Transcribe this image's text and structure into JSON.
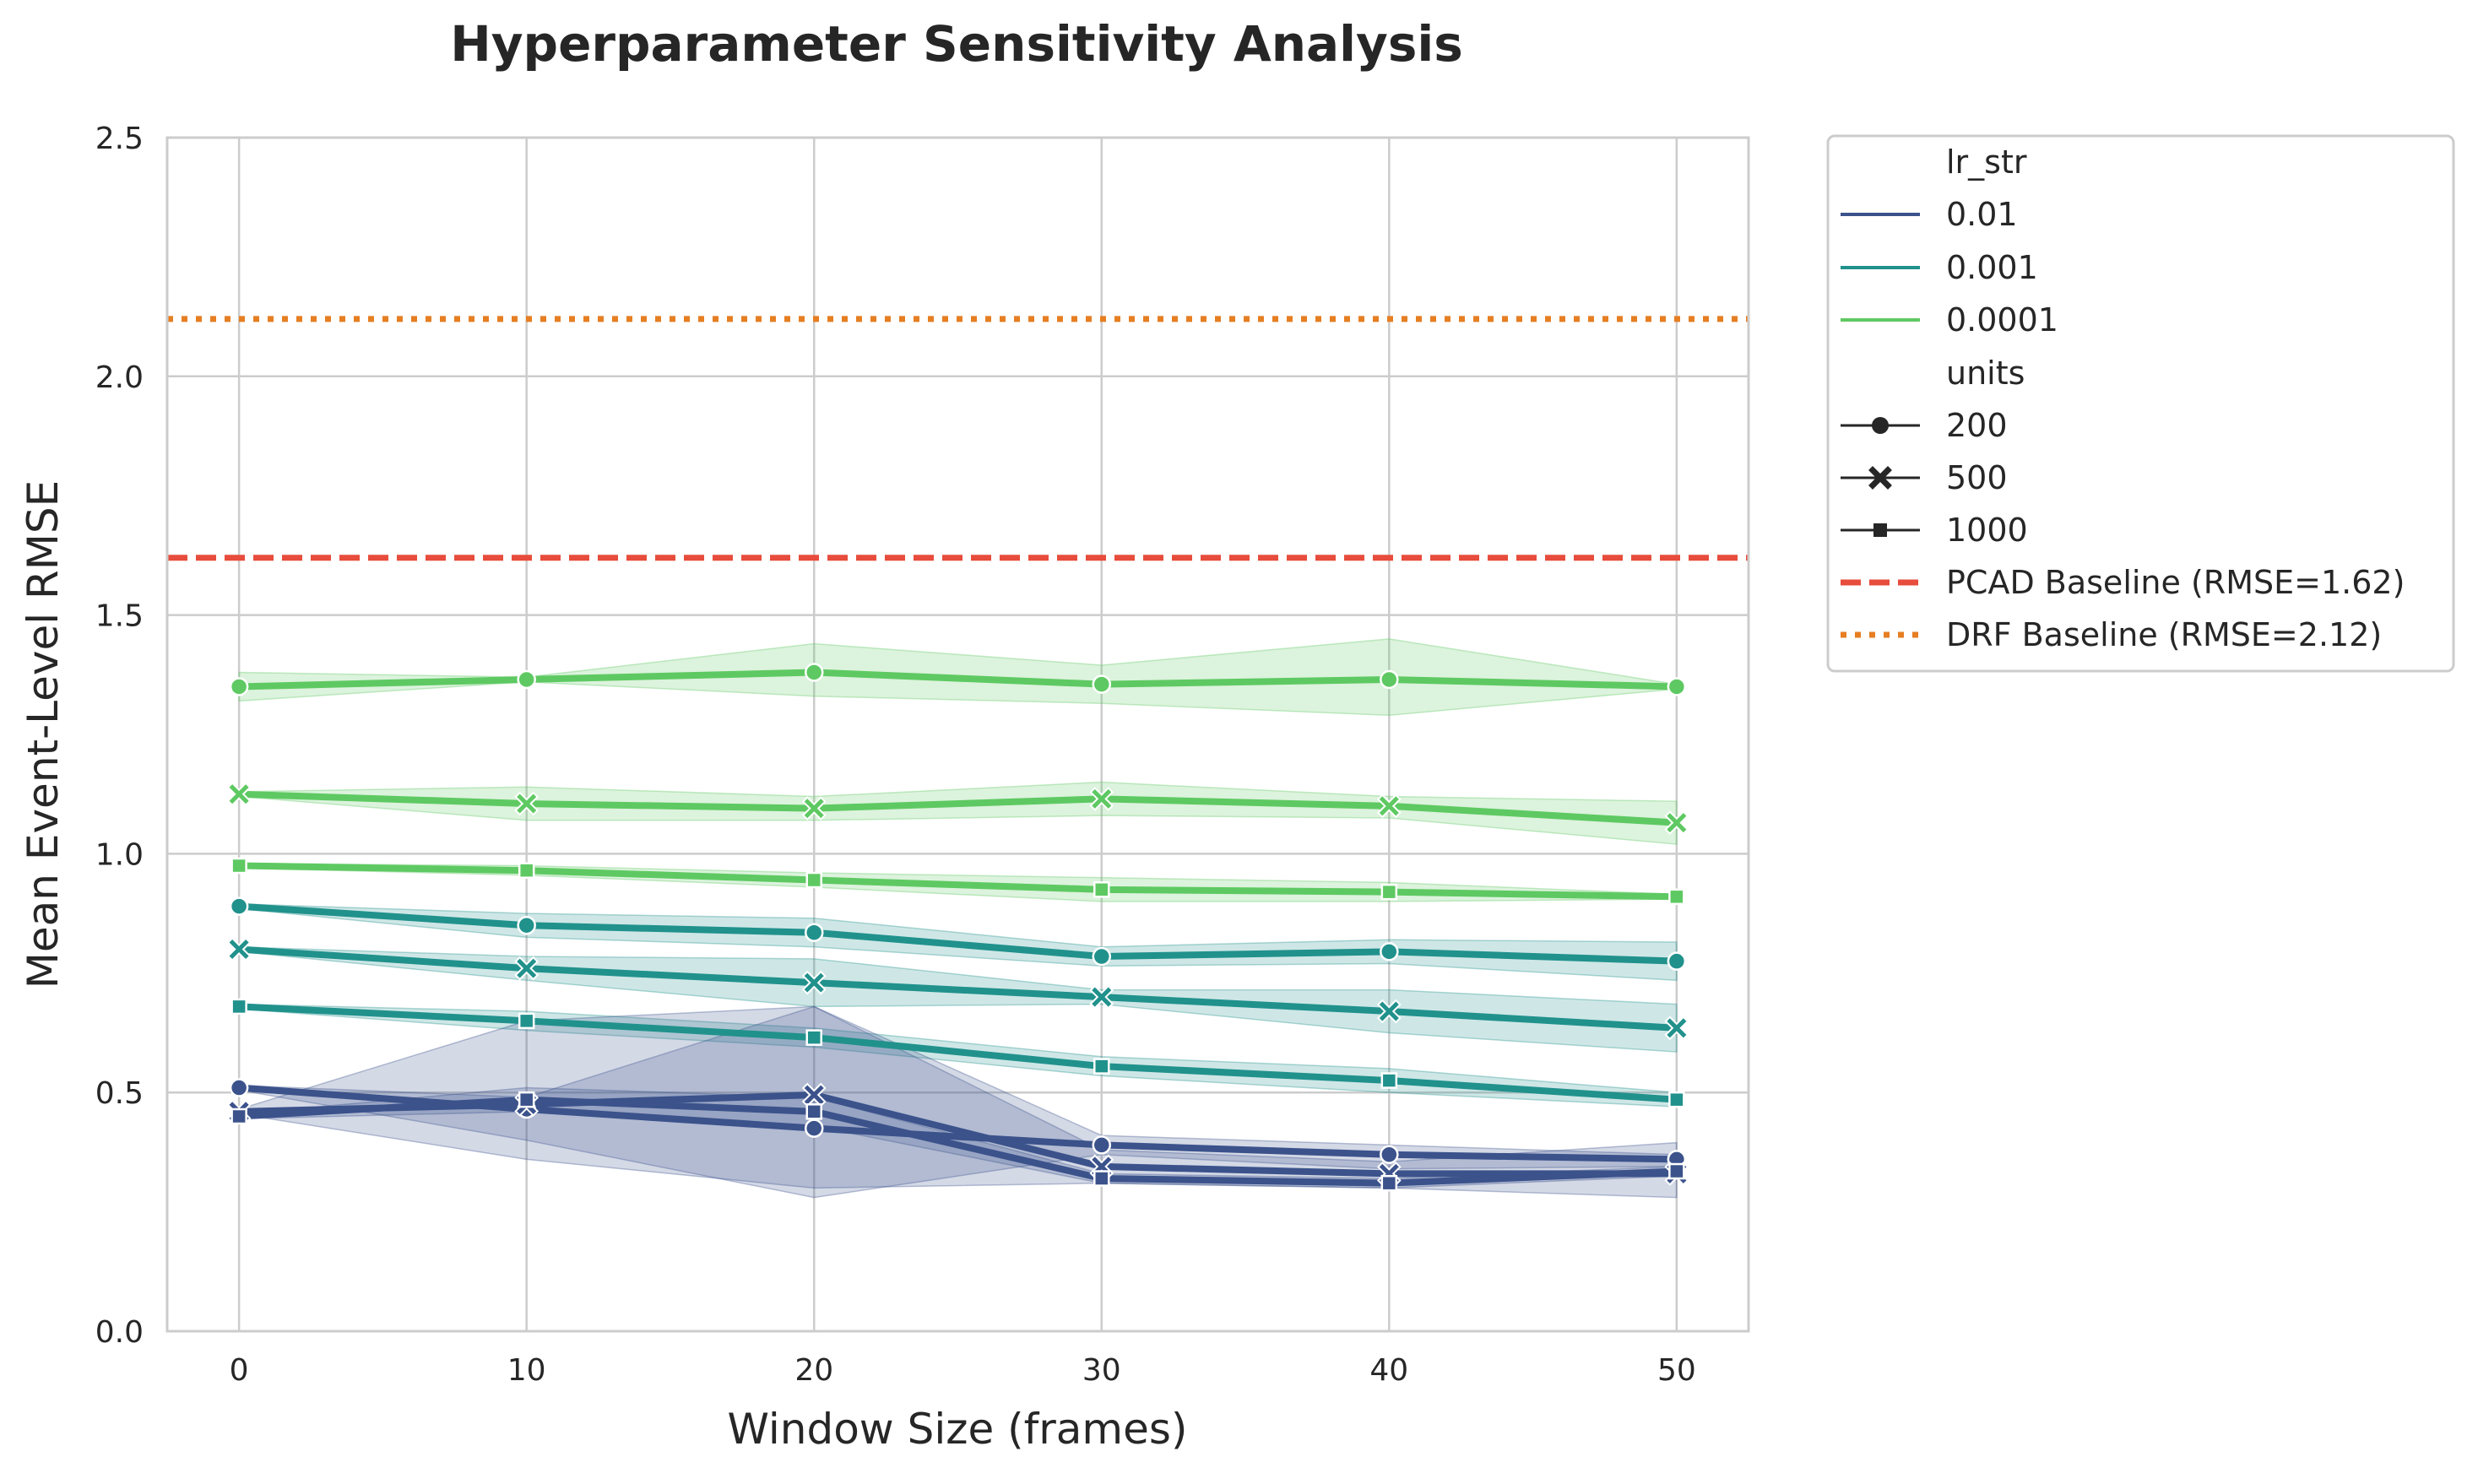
{
  "chart_data": {
    "type": "line",
    "title": "Hyperparameter Sensitivity Analysis",
    "xlabel": "Window Size (frames)",
    "ylabel": "Mean Event-Level RMSE",
    "xlim": [
      -2.5,
      52.5
    ],
    "ylim": [
      0.0,
      2.5
    ],
    "x": [
      0,
      10,
      20,
      30,
      40,
      50
    ],
    "x_ticks": [
      "0",
      "10",
      "20",
      "30",
      "40",
      "50"
    ],
    "y_ticks": [
      "0.0",
      "0.5",
      "1.0",
      "1.5",
      "2.0",
      "2.5"
    ],
    "grid": true,
    "legend_position": "outside-top-right",
    "legend": {
      "hue_title": "lr_str",
      "hue_entries": [
        {
          "label": "0.01",
          "color": "#3b528b"
        },
        {
          "label": "0.001",
          "color": "#21918c"
        },
        {
          "label": "0.0001",
          "color": "#5ec962"
        }
      ],
      "style_title": "units",
      "style_entries": [
        {
          "label": "200",
          "marker": "circle"
        },
        {
          "label": "500",
          "marker": "x"
        },
        {
          "label": "1000",
          "marker": "square"
        }
      ],
      "baseline_entries": [
        {
          "label": "PCAD Baseline (RMSE=1.62)",
          "color": "#e74c3c",
          "dash": "dashed"
        },
        {
          "label": "DRF Baseline (RMSE=2.12)",
          "color": "#e67e22",
          "dash": "dotted"
        }
      ]
    },
    "baselines": [
      {
        "name": "PCAD Baseline",
        "value": 1.62,
        "color": "#e74c3c",
        "dash": "dashed"
      },
      {
        "name": "DRF Baseline",
        "value": 2.12,
        "color": "#e67e22",
        "dash": "dotted"
      }
    ],
    "series": [
      {
        "lr": "0.0001",
        "units": "200",
        "color": "#5ec962",
        "marker": "circle",
        "values": [
          1.35,
          1.365,
          1.38,
          1.355,
          1.365,
          1.35
        ],
        "lower": [
          1.32,
          1.36,
          1.33,
          1.315,
          1.29,
          1.345
        ],
        "upper": [
          1.38,
          1.37,
          1.44,
          1.395,
          1.45,
          1.355
        ]
      },
      {
        "lr": "0.0001",
        "units": "500",
        "color": "#5ec962",
        "marker": "x",
        "values": [
          1.125,
          1.105,
          1.095,
          1.115,
          1.1,
          1.065
        ],
        "lower": [
          1.12,
          1.07,
          1.07,
          1.08,
          1.075,
          1.02
        ],
        "upper": [
          1.13,
          1.14,
          1.12,
          1.15,
          1.12,
          1.11
        ]
      },
      {
        "lr": "0.0001",
        "units": "1000",
        "color": "#5ec962",
        "marker": "square",
        "values": [
          0.975,
          0.965,
          0.945,
          0.925,
          0.92,
          0.91
        ],
        "lower": [
          0.97,
          0.955,
          0.93,
          0.9,
          0.9,
          0.905
        ],
        "upper": [
          0.98,
          0.975,
          0.96,
          0.95,
          0.94,
          0.915
        ]
      },
      {
        "lr": "0.001",
        "units": "200",
        "color": "#21918c",
        "marker": "circle",
        "values": [
          0.89,
          0.85,
          0.835,
          0.785,
          0.795,
          0.775
        ],
        "lower": [
          0.885,
          0.825,
          0.805,
          0.765,
          0.77,
          0.735
        ],
        "upper": [
          0.895,
          0.875,
          0.865,
          0.805,
          0.82,
          0.815
        ]
      },
      {
        "lr": "0.001",
        "units": "500",
        "color": "#21918c",
        "marker": "x",
        "values": [
          0.8,
          0.76,
          0.73,
          0.7,
          0.67,
          0.635
        ],
        "lower": [
          0.795,
          0.735,
          0.68,
          0.685,
          0.625,
          0.585
        ],
        "upper": [
          0.805,
          0.785,
          0.78,
          0.715,
          0.715,
          0.685
        ]
      },
      {
        "lr": "0.001",
        "units": "1000",
        "color": "#21918c",
        "marker": "square",
        "values": [
          0.68,
          0.65,
          0.615,
          0.555,
          0.525,
          0.485
        ],
        "lower": [
          0.675,
          0.63,
          0.595,
          0.535,
          0.5,
          0.47
        ],
        "upper": [
          0.685,
          0.67,
          0.635,
          0.575,
          0.55,
          0.5
        ]
      },
      {
        "lr": "0.01",
        "units": "200",
        "color": "#3b528b",
        "marker": "circle",
        "values": [
          0.51,
          0.465,
          0.425,
          0.39,
          0.37,
          0.36
        ],
        "lower": [
          0.505,
          0.4,
          0.28,
          0.37,
          0.34,
          0.345
        ],
        "upper": [
          0.515,
          0.49,
          0.68,
          0.41,
          0.39,
          0.37
        ]
      },
      {
        "lr": "0.01",
        "units": "500",
        "color": "#3b528b",
        "marker": "x",
        "values": [
          0.46,
          0.475,
          0.495,
          0.345,
          0.33,
          0.33
        ],
        "lower": [
          0.455,
          0.36,
          0.3,
          0.31,
          0.3,
          0.28
        ],
        "upper": [
          0.465,
          0.65,
          0.68,
          0.38,
          0.355,
          0.395
        ]
      },
      {
        "lr": "0.01",
        "units": "1000",
        "color": "#3b528b",
        "marker": "square",
        "values": [
          0.45,
          0.485,
          0.46,
          0.32,
          0.31,
          0.335
        ],
        "lower": [
          0.445,
          0.46,
          0.43,
          0.31,
          0.3,
          0.325
        ],
        "upper": [
          0.455,
          0.51,
          0.49,
          0.33,
          0.32,
          0.345
        ]
      }
    ]
  }
}
